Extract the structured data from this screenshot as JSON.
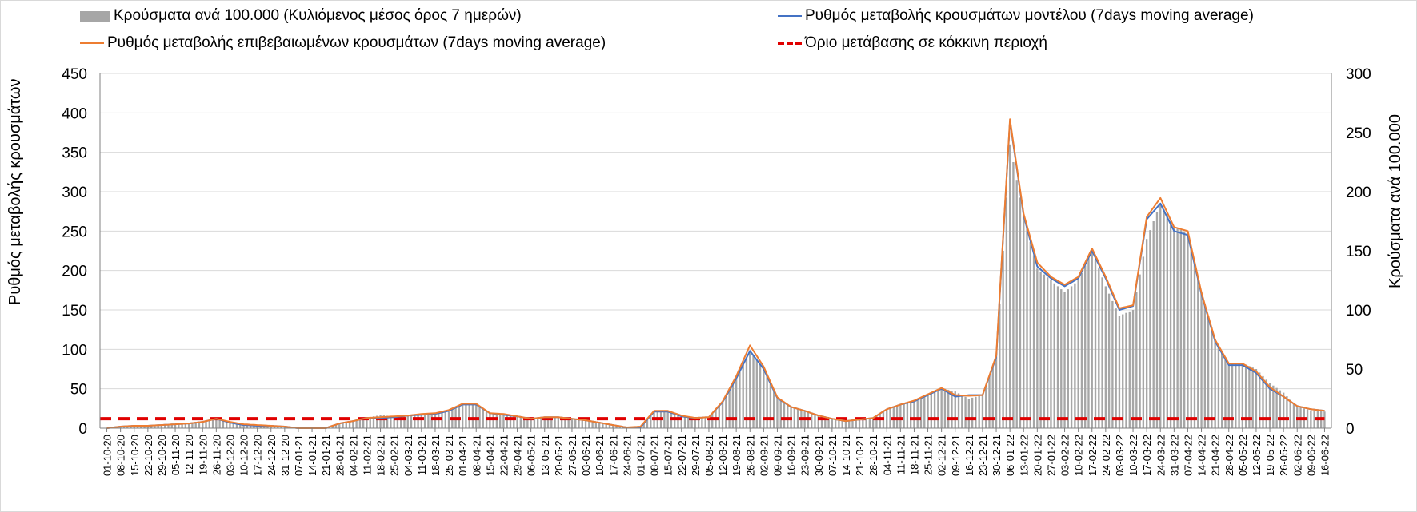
{
  "chart_data": {
    "type": "bar+line",
    "legend": {
      "bars": "Κρούσματα ανά 100.000 (Κυλιόμενος μέσος όρος 7 ημερών)",
      "model_line": "Ρυθμός μεταβολής κρουσμάτων μοντέλου (7days moving average)",
      "confirmed_line": "Ρυθμός μεταβολής επιβεβαιωμένων κρουσμάτων (7days moving average)",
      "threshold": "Όριο μετάβασης σε κόκκινη περιοχή"
    },
    "ylabel_left": "Ρυθμός μεταβολής κρουσμάτων",
    "ylabel_right": "Κρούσματα ανά 100.000",
    "y_left": {
      "min": 0,
      "max": 450,
      "ticks": [
        0,
        50,
        100,
        150,
        200,
        250,
        300,
        350,
        400,
        450
      ]
    },
    "y_right": {
      "min": 0,
      "max": 300,
      "ticks": [
        0,
        50,
        100,
        150,
        200,
        250,
        300
      ]
    },
    "x_tick_labels": [
      "01-10-20",
      "08-10-20",
      "15-10-20",
      "22-10-20",
      "29-10-20",
      "05-11-20",
      "12-11-20",
      "19-11-20",
      "26-11-20",
      "03-12-20",
      "10-12-20",
      "17-12-20",
      "24-12-20",
      "31-12-20",
      "07-01-21",
      "14-01-21",
      "21-01-21",
      "28-01-21",
      "04-02-21",
      "11-02-21",
      "18-02-21",
      "25-02-21",
      "04-03-21",
      "11-03-21",
      "18-03-21",
      "25-03-21",
      "01-04-21",
      "08-04-21",
      "15-04-21",
      "22-04-21",
      "29-04-21",
      "06-05-21",
      "13-05-21",
      "20-05-21",
      "27-05-21",
      "03-06-21",
      "10-06-21",
      "17-06-21",
      "24-06-21",
      "01-07-21",
      "08-07-21",
      "15-07-21",
      "22-07-21",
      "29-07-21",
      "05-08-21",
      "12-08-21",
      "19-08-21",
      "26-08-21",
      "02-09-21",
      "09-09-21",
      "16-09-21",
      "23-09-21",
      "30-09-21",
      "07-10-21",
      "14-10-21",
      "21-10-21",
      "28-10-21",
      "04-11-21",
      "11-11-21",
      "18-11-21",
      "25-11-21",
      "02-12-21",
      "09-12-21",
      "16-12-21",
      "23-12-21",
      "30-12-21",
      "06-01-22",
      "13-01-22",
      "20-01-22",
      "27-01-22",
      "03-02-22",
      "10-02-22",
      "17-02-22",
      "24-02-22",
      "03-03-22",
      "10-03-22",
      "17-03-22",
      "24-03-22",
      "31-03-22",
      "07-04-22",
      "14-04-22",
      "21-04-22",
      "28-04-22",
      "05-05-22",
      "12-05-22",
      "19-05-22",
      "26-05-22",
      "02-06-22",
      "09-06-22",
      "16-06-22"
    ],
    "threshold_value": 12,
    "bars_weekly": [
      0,
      1,
      2,
      2,
      3,
      3,
      4,
      6,
      8,
      5,
      3,
      2,
      2,
      1,
      0,
      0,
      0,
      4,
      6,
      9,
      11,
      10,
      11,
      12,
      13,
      14,
      20,
      21,
      13,
      11,
      10,
      8,
      9,
      9,
      8,
      7,
      5,
      3,
      1,
      1,
      14,
      14,
      10,
      8,
      9,
      22,
      42,
      65,
      50,
      25,
      18,
      15,
      11,
      8,
      6,
      7,
      9,
      16,
      20,
      22,
      28,
      34,
      31,
      25,
      28,
      60,
      240,
      180,
      135,
      125,
      115,
      125,
      150,
      120,
      95,
      100,
      160,
      190,
      170,
      165,
      115,
      75,
      55,
      55,
      50,
      38,
      30,
      18,
      15,
      14
    ],
    "model_weekly": [
      0,
      2,
      3,
      3,
      4,
      5,
      6,
      8,
      12,
      7,
      4,
      3,
      3,
      2,
      0,
      0,
      0,
      6,
      9,
      13,
      13,
      14,
      16,
      17,
      18,
      22,
      30,
      30,
      19,
      17,
      15,
      12,
      14,
      14,
      12,
      10,
      7,
      4,
      1,
      1,
      21,
      21,
      15,
      13,
      14,
      33,
      63,
      98,
      75,
      38,
      27,
      22,
      16,
      12,
      9,
      11,
      13,
      24,
      30,
      34,
      42,
      50,
      40,
      42,
      42,
      90,
      390,
      270,
      205,
      190,
      180,
      190,
      225,
      190,
      150,
      155,
      265,
      285,
      250,
      245,
      170,
      110,
      80,
      80,
      70,
      50,
      40,
      28,
      24,
      22
    ],
    "confirmed_weekly": [
      0,
      2,
      3,
      3,
      4,
      5,
      6,
      8,
      12,
      8,
      5,
      4,
      3,
      2,
      0,
      0,
      0,
      6,
      9,
      13,
      14,
      15,
      16,
      18,
      19,
      23,
      31,
      31,
      19,
      18,
      15,
      12,
      14,
      14,
      12,
      10,
      7,
      4,
      1,
      2,
      22,
      22,
      16,
      13,
      14,
      34,
      66,
      105,
      78,
      39,
      27,
      22,
      16,
      12,
      9,
      11,
      13,
      24,
      30,
      35,
      43,
      51,
      42,
      41,
      42,
      92,
      392,
      272,
      210,
      192,
      182,
      192,
      228,
      192,
      152,
      156,
      268,
      292,
      255,
      250,
      172,
      112,
      82,
      82,
      72,
      52,
      40,
      28,
      24,
      22
    ]
  }
}
